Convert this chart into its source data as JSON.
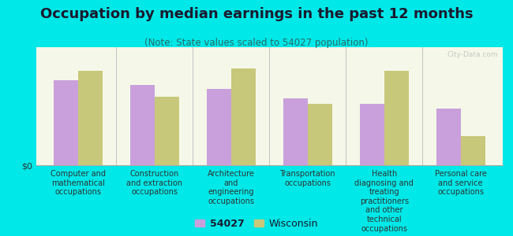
{
  "title": "Occupation by median earnings in the past 12 months",
  "subtitle": "(Note: State values scaled to 54027 population)",
  "categories": [
    "Computer and\nmathematical\noccupations",
    "Construction\nand extraction\noccupations",
    "Architecture\nand\nengineering\noccupations",
    "Transportation\noccupations",
    "Health\ndiagnosing and\ntreating\npractitioners\nand other\ntechnical\noccupations",
    "Personal care\nand service\noccupations"
  ],
  "values_54027": [
    0.72,
    0.68,
    0.65,
    0.57,
    0.52,
    0.48
  ],
  "values_wisconsin": [
    0.8,
    0.58,
    0.82,
    0.52,
    0.8,
    0.25
  ],
  "color_54027": "#c9a0dc",
  "color_wisconsin": "#c8c87a",
  "background_color": "#00e8e8",
  "plot_bg_color": "#f5f8e8",
  "ylabel": "$0",
  "legend_54027": "54027",
  "legend_wisconsin": "Wisconsin",
  "bar_width": 0.32,
  "title_fontsize": 13,
  "subtitle_fontsize": 8.5,
  "label_fontsize": 7,
  "legend_fontsize": 9,
  "watermark": "City-Data.com"
}
